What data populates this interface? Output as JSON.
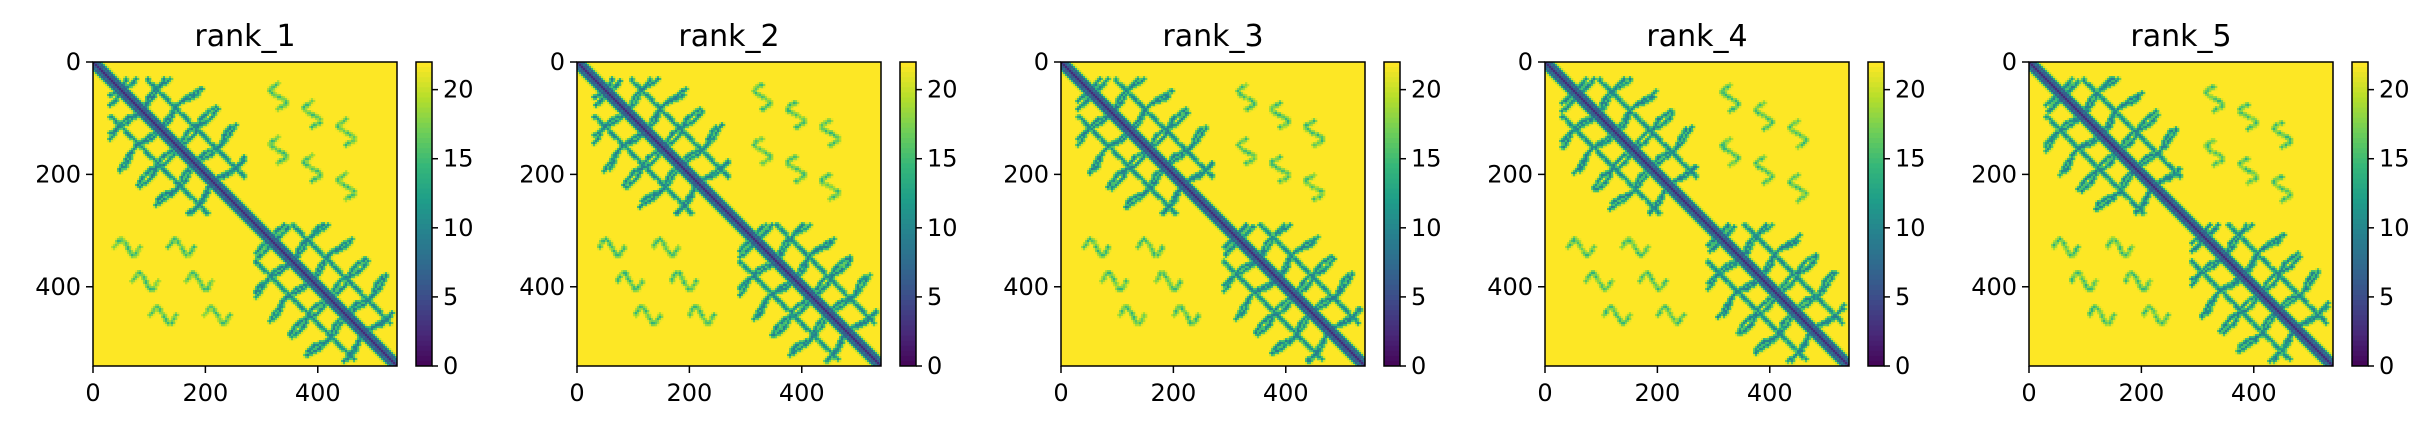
{
  "chart_data": [
    {
      "type": "heatmap",
      "title": "rank_1",
      "matrix_size": 541,
      "x_ticks": [
        0,
        200,
        400
      ],
      "y_ticks": [
        0,
        200,
        400
      ],
      "xlim": [
        0,
        541
      ],
      "ylim": [
        541,
        0
      ],
      "colorbar": {
        "range": [
          0,
          22
        ],
        "ticks": [
          0,
          5,
          10,
          15,
          20
        ]
      },
      "colormap": "viridis",
      "domain_boundary": 270,
      "variant": 1
    },
    {
      "type": "heatmap",
      "title": "rank_2",
      "matrix_size": 541,
      "x_ticks": [
        0,
        200,
        400
      ],
      "y_ticks": [
        0,
        200,
        400
      ],
      "xlim": [
        0,
        541
      ],
      "ylim": [
        541,
        0
      ],
      "colorbar": {
        "range": [
          0,
          22
        ],
        "ticks": [
          0,
          5,
          10,
          15,
          20
        ]
      },
      "colormap": "viridis",
      "domain_boundary": 270,
      "variant": 2
    },
    {
      "type": "heatmap",
      "title": "rank_3",
      "matrix_size": 541,
      "x_ticks": [
        0,
        200,
        400
      ],
      "y_ticks": [
        0,
        200,
        400
      ],
      "xlim": [
        0,
        541
      ],
      "ylim": [
        541,
        0
      ],
      "colorbar": {
        "range": [
          0,
          22
        ],
        "ticks": [
          0,
          5,
          10,
          15,
          20
        ]
      },
      "colormap": "viridis",
      "domain_boundary": 270,
      "variant": 3
    },
    {
      "type": "heatmap",
      "title": "rank_4",
      "matrix_size": 541,
      "x_ticks": [
        0,
        200,
        400
      ],
      "y_ticks": [
        0,
        200,
        400
      ],
      "xlim": [
        0,
        541
      ],
      "ylim": [
        541,
        0
      ],
      "colorbar": {
        "range": [
          0,
          22
        ],
        "ticks": [
          0,
          5,
          10,
          15,
          20
        ]
      },
      "colormap": "viridis",
      "domain_boundary": 270,
      "variant": 4
    },
    {
      "type": "heatmap",
      "title": "rank_5",
      "matrix_size": 541,
      "x_ticks": [
        0,
        200,
        400
      ],
      "y_ticks": [
        0,
        200,
        400
      ],
      "xlim": [
        0,
        541
      ],
      "ylim": [
        541,
        0
      ],
      "colorbar": {
        "range": [
          0,
          22
        ],
        "ticks": [
          0,
          5,
          10,
          15,
          20
        ]
      },
      "colormap": "viridis",
      "domain_boundary": 270,
      "variant": 5
    }
  ],
  "colors": {
    "background": "#ffffff",
    "axis": "#000000",
    "viridis_stops": [
      "#440154",
      "#482878",
      "#3e4a89",
      "#31688e",
      "#26828e",
      "#1f9e89",
      "#35b779",
      "#6ece58",
      "#b5de2b",
      "#fde725"
    ]
  }
}
